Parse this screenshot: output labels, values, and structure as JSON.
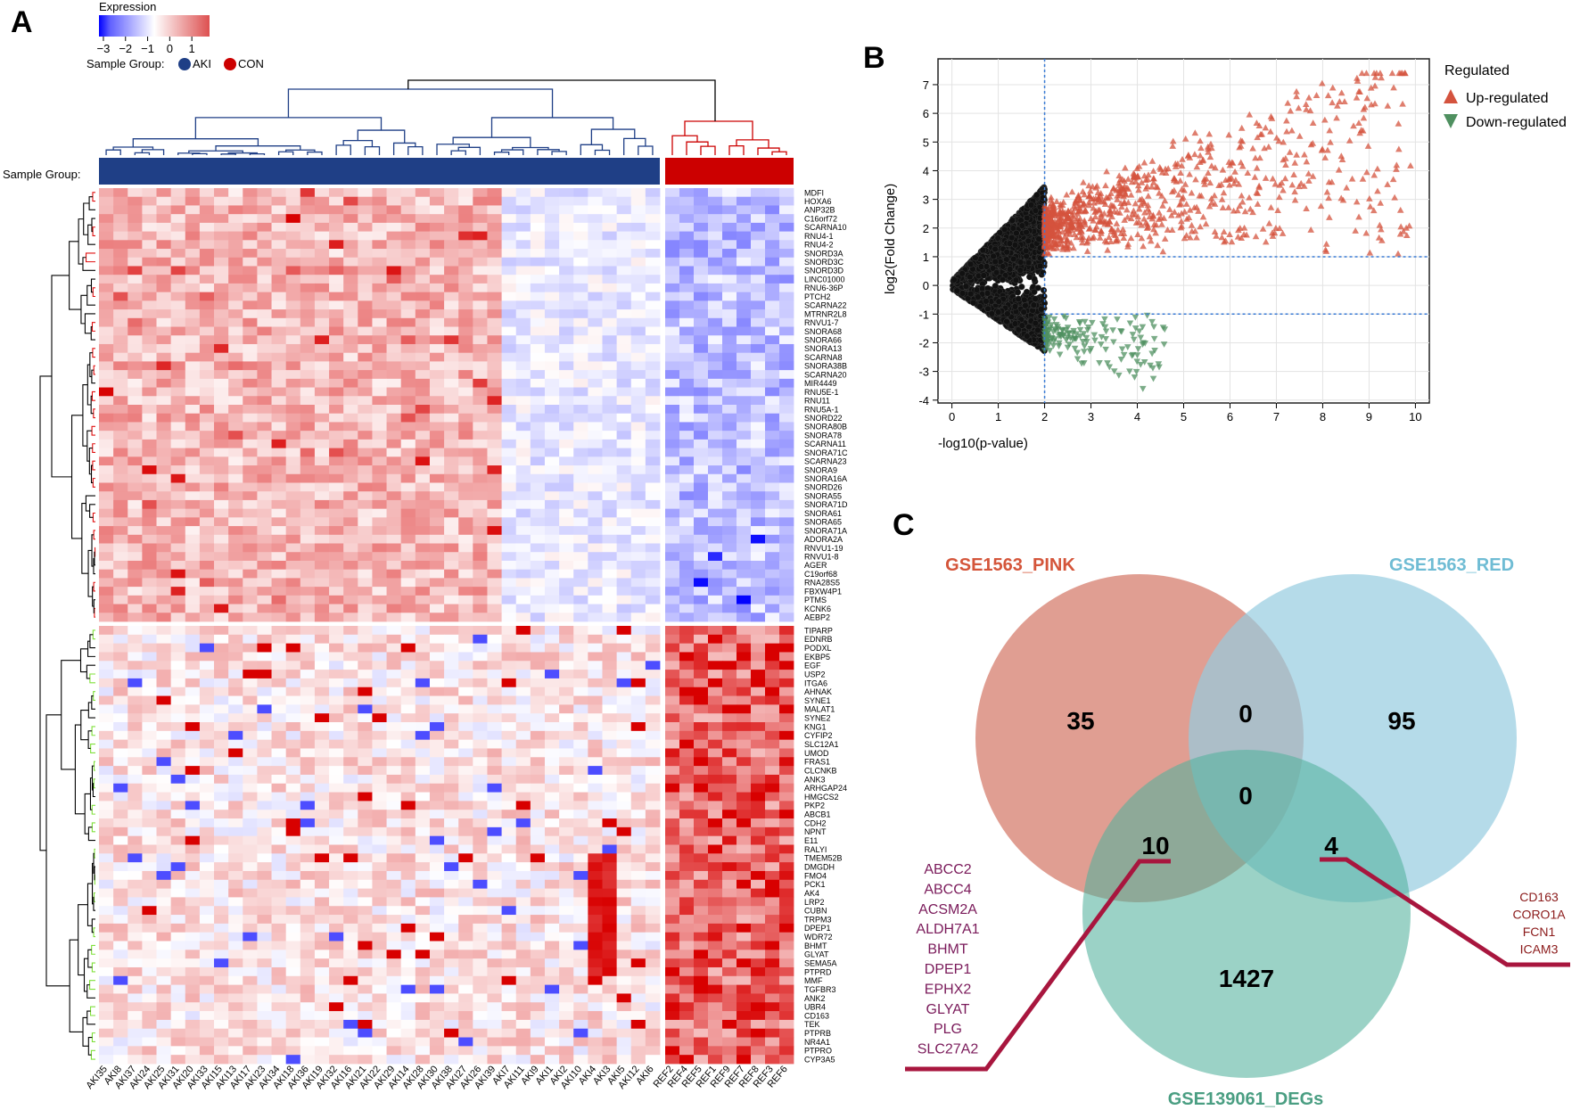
{
  "panels": {
    "a": "A",
    "b": "B",
    "c": "C"
  },
  "colors": {
    "heat_low": "#0000ff",
    "heat_mid": "#ffffff",
    "heat_high": "#d80000",
    "aki": "#1f3f86",
    "con": "#cc0000",
    "dend_top": "#e01010",
    "dend_bottom": "#7fe03a",
    "up": "#d4533e",
    "down": "#4f9060",
    "ns": "#000000",
    "venn_pink": "#d98a7d",
    "venn_red": "#a6d6e6",
    "venn_degs": "#6cbcaa",
    "label_pink": "#d4553a",
    "label_red": "#6fbcd4",
    "label_degs": "#4a9e82",
    "leader": "#a8163e",
    "genes_left": "#7a1a5a",
    "genes_right": "#8b1a1a"
  },
  "chart_data": [
    {
      "type": "heatmap",
      "legend": {
        "title": "Expression",
        "ticks": [
          "−3",
          "−2",
          "−1",
          "0",
          "1"
        ],
        "range": [
          -3.2,
          1.8
        ],
        "group_label": "Sample Group:",
        "groups": [
          "AKI",
          "CON"
        ]
      },
      "group_bar_label": "Sample Group:",
      "samples_aki": [
        "AKI35",
        "AKI8",
        "AKI37",
        "AKI24",
        "AKI25",
        "AKI31",
        "AKI20",
        "AKI33",
        "AKI15",
        "AKI13",
        "AKI17",
        "AKI23",
        "AKI34",
        "AKI18",
        "AKI36",
        "AKI19",
        "AKI32",
        "AKI16",
        "AKI21",
        "AKI22",
        "AKI29",
        "AKI14",
        "AKI28",
        "AKI30",
        "AKI38",
        "AKI27",
        "AKI26",
        "AKI39",
        "AKI7",
        "AKI11",
        "AKI9",
        "AKI1",
        "AKI2",
        "AKI10",
        "AKI4",
        "AKI3",
        "AKI5",
        "AKI12",
        "AKI6"
      ],
      "samples_con": [
        "REF2",
        "REF4",
        "REF5",
        "REF1",
        "REF9",
        "REF7",
        "REF8",
        "REF3",
        "REF6"
      ],
      "genes_top": [
        "MDFI",
        "HOXA6",
        "ANP32B",
        "C16orf72",
        "SCARNA10",
        "RNU4-1",
        "RNU4-2",
        "SNORD3A",
        "SNORD3C",
        "SNORD3D",
        "LINC01000",
        "RNU6-36P",
        "PTCH2",
        "SCARNA22",
        "MTRNR2L8",
        "RNVU1-7",
        "SNORA68",
        "SNORA66",
        "SNORA13",
        "SCARNA8",
        "SNORA38B",
        "SCARNA20",
        "MIR4449",
        "RNU5E-1",
        "RNU11",
        "RNU5A-1",
        "SNORD22",
        "SNORA80B",
        "SNORA78",
        "SCARNA11",
        "SNORA71C",
        "SCARNA23",
        "SNORA9",
        "SNORA16A",
        "SNORD26",
        "SNORA55",
        "SNORA71D",
        "SNORA61",
        "SNORA65",
        "SNORA71A",
        "ADORA2A",
        "RNVU1-19",
        "RNVU1-8",
        "AGER",
        "C19orf68",
        "RNA28S5",
        "FBXW4P1",
        "PTMS",
        "KCNK6",
        "AEBP2"
      ],
      "genes_bottom": [
        "TIPARP",
        "EDNRB",
        "PODXL",
        "EKBP5",
        "EGF",
        "USP2",
        "ITGA6",
        "AHNAK",
        "SYNE1",
        "MALAT1",
        "SYNE2",
        "KNG1",
        "CYFIP2",
        "SLC12A1",
        "UMOD",
        "FRAS1",
        "CLCNKB",
        "ANK3",
        "ARHGAP24",
        "HMGCS2",
        "PKP2",
        "ABCB1",
        "CDH2",
        "NPNT",
        "E11",
        "RALYI",
        "TMEM52B",
        "DMGDH",
        "FMO4",
        "PCK1",
        "AK4",
        "LRP2",
        "CUBN",
        "TRPM3",
        "DPEP1",
        "WDR72",
        "BHMT",
        "GLYAT",
        "SEMA5A",
        "PTPRD",
        "MMF",
        "TGFBR3",
        "ANK2",
        "UBR4",
        "CD163",
        "TEK",
        "PTPRB",
        "NR4A1",
        "PTPRO",
        "CYP3A5"
      ]
    },
    {
      "type": "scatter",
      "xlabel": "-log10(p-value)",
      "ylabel": "log2(Fold Change)",
      "xlim": [
        -0.3,
        10.3
      ],
      "ylim": [
        -4.1,
        7.9
      ],
      "xticks": [
        0,
        1,
        2,
        3,
        4,
        5,
        6,
        7,
        8,
        9,
        10
      ],
      "yticks": [
        -4,
        -3,
        -2,
        -1,
        0,
        1,
        2,
        3,
        4,
        5,
        6,
        7
      ],
      "grid": true,
      "thresholds": {
        "x": 2,
        "y": [
          1,
          -1
        ]
      },
      "legend": {
        "title": "Regulated",
        "position": "right",
        "entries": [
          "Up-regulated",
          "Down-regulated"
        ]
      },
      "series": [
        {
          "name": "Up-regulated",
          "x_range": [
            2,
            9.9
          ],
          "y_range": [
            1,
            7.4
          ]
        },
        {
          "name": "Down-regulated",
          "x_range": [
            2,
            5
          ],
          "y_range": [
            -3.6,
            -1
          ]
        },
        {
          "name": "Not significant",
          "x_range": [
            0,
            2
          ],
          "y_range": [
            -2.7,
            3.6
          ]
        }
      ]
    },
    {
      "type": "venn",
      "sets": [
        "GSE1563_PINK",
        "GSE1563_RED",
        "GSE139061_DEGs"
      ],
      "regions": {
        "pink_only": "35",
        "red_only": "95",
        "degs_only": "1427",
        "pink_red": "0",
        "all_three": "0",
        "pink_degs": "10",
        "red_degs": "4"
      },
      "pink_degs_genes": [
        "ABCC2",
        "ABCC4",
        "ACSM2A",
        "ALDH7A1",
        "BHMT",
        "DPEP1",
        "EPHX2",
        "GLYAT",
        "PLG",
        "SLC27A2"
      ],
      "red_degs_genes": [
        "CD163",
        "CORO1A",
        "FCN1",
        "ICAM3"
      ]
    }
  ]
}
